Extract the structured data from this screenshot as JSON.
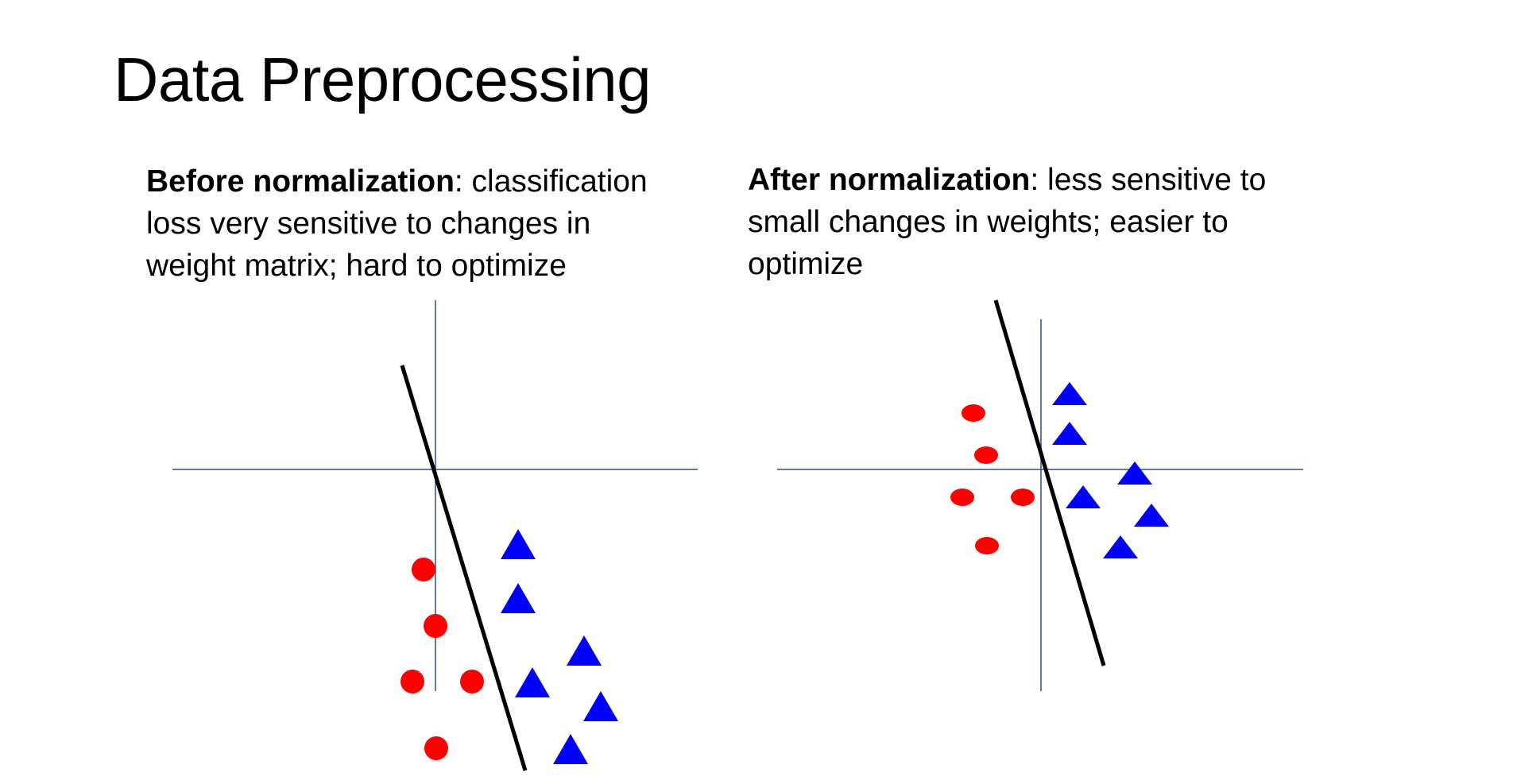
{
  "title": "Data Preprocessing",
  "left_panel": {
    "caption_bold": "Before normalization",
    "caption_text": ": classification loss very sensitive to changes in weight matrix; hard to optimize"
  },
  "right_panel": {
    "caption_bold": "After normalization",
    "caption_text": ": less sensitive to small changes in weights; easier to optimize"
  },
  "colors": {
    "axis": "#2f4f8f",
    "boundary": "#000000",
    "class_circle": "#ff0000",
    "class_triangle": "#0000ff"
  },
  "legend_icons": [
    "red-circle-point",
    "blue-triangle-point",
    "black-decision-boundary"
  ]
}
